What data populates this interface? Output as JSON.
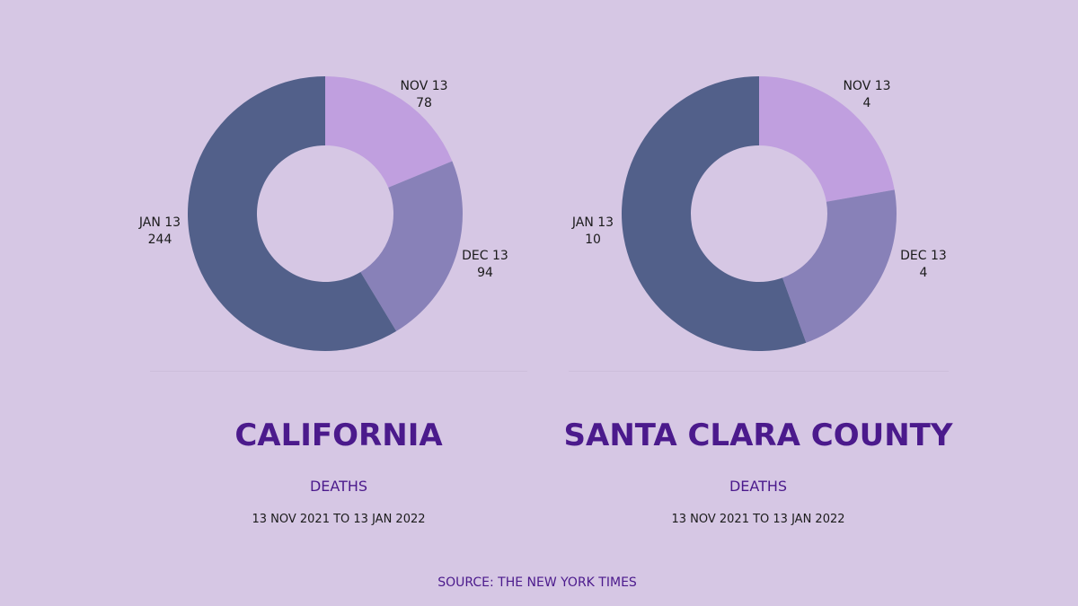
{
  "colors": {
    "background": "#d6c7e4",
    "title": "#4b1a8c",
    "nov": "#c09fdf",
    "dec": "#8881b8",
    "jan": "#52608a",
    "hole": "#d6c7e4"
  },
  "chart_data": [
    {
      "type": "pie",
      "title": "CALIFORNIA",
      "subtitle": "DEATHS",
      "period": "13 NOV 2021 TO 13 JAN 2022",
      "categories": [
        "NOV 13",
        "DEC 13",
        "JAN 13"
      ],
      "values": [
        78,
        94,
        244
      ],
      "labels": [
        {
          "name": "NOV 13",
          "value": "78"
        },
        {
          "name": "DEC 13",
          "value": "94"
        },
        {
          "name": "JAN 13",
          "value": "244"
        }
      ]
    },
    {
      "type": "pie",
      "title": "SANTA CLARA COUNTY",
      "subtitle": "DEATHS",
      "period": "13 NOV 2021 TO 13 JAN 2022",
      "categories": [
        "NOV 13",
        "DEC 13",
        "JAN 13"
      ],
      "values": [
        4,
        4,
        10
      ],
      "labels": [
        {
          "name": "NOV 13",
          "value": "4"
        },
        {
          "name": "DEC 13",
          "value": "4"
        },
        {
          "name": "JAN 13",
          "value": "10"
        }
      ]
    }
  ],
  "footer": {
    "source": "SOURCE: THE NEW YORK TIMES"
  }
}
